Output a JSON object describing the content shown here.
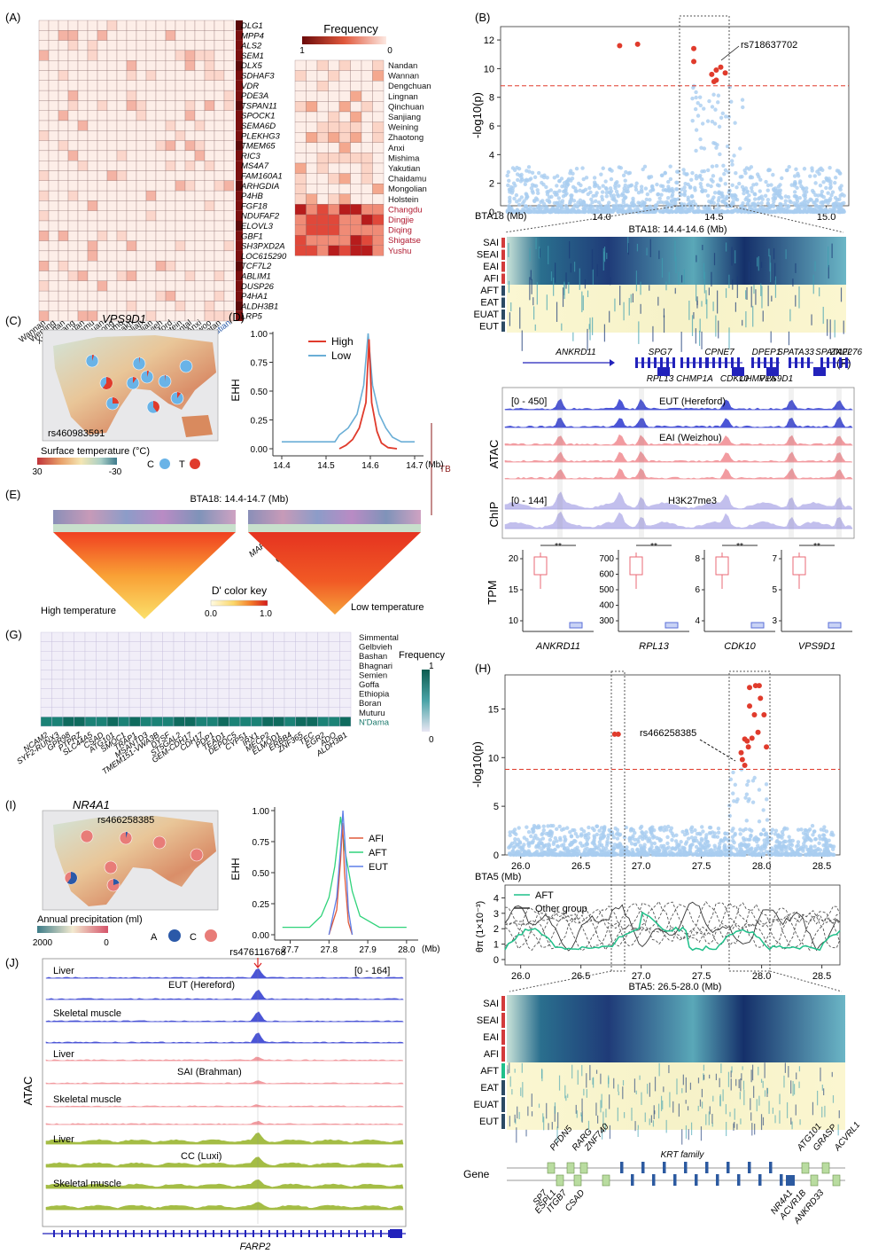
{
  "panels": {
    "A": {
      "label": "(A)",
      "genes": [
        "DLG1",
        "MPP4",
        "ALS2",
        "SEM1",
        "DLX5",
        "SDHAF3",
        "VDR",
        "PDE3A",
        "TSPAN11",
        "SPOCK1",
        "SEMA6D",
        "PLEKHG3",
        "TMEM65",
        "RIC3",
        "MS4A7",
        "FAM160A1",
        "ARHGDIA",
        "P4HB",
        "FGF18",
        "NDUFAF2",
        "ELOVL3",
        "GBF1",
        "SH3PXD2A",
        "LOC615290",
        "TCF7L2",
        "ABLIM1",
        "DUSP26",
        "P4HA1",
        "ALDH3B1",
        "LRP5"
      ],
      "populations": [
        "Wannan",
        "Wenling",
        "Xuanhan",
        "Nanyang",
        "Qinchuan",
        "Chaidamu",
        "Dengchuan",
        "Dianzhong",
        "Chaidamu",
        "Kazakh",
        "(Inner) Mongolian",
        "Eastern Mongolian",
        "Gelbvieh",
        "Hereford",
        "Holstein",
        "Simmental",
        "Anxi",
        "Hanwoo",
        "Tibetan",
        "Yakutian"
      ],
      "freq_title": "Frequency",
      "freq_min": "0",
      "freq_max": "1",
      "loci": [
        "MAP3K7-BACH2",
        "PDE10A",
        "SHFDUOX1",
        "GALNT14-CAPN13",
        "PTK6",
        "CHST1",
        "TRAPPC11-STOX2",
        "NTM"
      ],
      "rows": [
        "Nandan",
        "Wannan",
        "Dengchuan",
        "Lingnan",
        "Qinchuan",
        "Sanjiang",
        "Weining",
        "Zhaotong",
        "Anxi",
        "Mishima",
        "Yakutian",
        "Chaidamu",
        "Mongolian",
        "Holstein",
        "Changdu",
        "Dingjie",
        "Diqing",
        "Shigatse",
        "Yushu"
      ],
      "tb_label": "TB"
    },
    "B": {
      "label": "(B)",
      "ylabel": "-log10(p)",
      "xlabel": "BTA18 (Mb)",
      "xticks": [
        "14.0",
        "14.5",
        "15.0"
      ],
      "yticks": [
        "0",
        "2",
        "4",
        "6",
        "8",
        "10",
        "12"
      ],
      "snp": "rs718637702",
      "region": "BTA18: 14.4-14.6 (Mb)",
      "groups": [
        "SAI",
        "SEAI",
        "EAI",
        "AFI",
        "AFT",
        "EAT",
        "EUAT",
        "EUT"
      ]
    },
    "C": {
      "label": "(C)",
      "gene": "VPS9D1",
      "snp": "rs460983591",
      "legend_title": "Surface temperature (°C)",
      "scale_min": "30",
      "scale_max": "-30",
      "allele_c": "C",
      "allele_t": "T"
    },
    "D": {
      "label": "(D)",
      "ylabel": "EHH",
      "xticks": [
        "14.4",
        "14.5",
        "14.6",
        "14.7"
      ],
      "xunit": "(Mb)",
      "yticks": [
        "0.00",
        "0.25",
        "0.50",
        "0.75",
        "1.00"
      ],
      "legend": [
        "High",
        "Low"
      ]
    },
    "E": {
      "label": "(E)",
      "title": "BTA18: 14.4-14.7 (Mb)",
      "left_label": "High temperature",
      "right_label": "Low temperature",
      "key_title": "D' color key",
      "key_min": "0.0",
      "key_max": "1.0"
    },
    "F": {
      "label": "(F)",
      "genes_top": [
        "ANKRD11",
        "SPG7",
        "CPNE7",
        "DPEP1",
        "SPATA33",
        "SPATA2L",
        "ZNF276"
      ],
      "genes_bottom": [
        "RPL13",
        "CHMP1A",
        "CDK10",
        "VPS9D1"
      ],
      "atac_range": "[0 - 450]",
      "atac_group1": "EUT (Hereford)",
      "atac_group2": "EAI (Weizhou)",
      "chip_range": "[0 - 144]",
      "chip_mark": "H3K27me3",
      "atac_label": "ATAC",
      "chip_label": "ChIP",
      "tpm_label": "TPM",
      "sig": "**",
      "box_genes": [
        "ANKRD11",
        "RPL13",
        "CDK10",
        "VPS9D1"
      ],
      "box_yticks": [
        [
          "10",
          "15",
          "20"
        ],
        [
          "300",
          "400",
          "500",
          "600",
          "700"
        ],
        [
          "4",
          "6",
          "8"
        ],
        [
          "3",
          "5",
          "7"
        ]
      ]
    },
    "G": {
      "label": "(G)",
      "rows": [
        "Simmental",
        "Gelbvieh",
        "Bashan",
        "Bhagnari",
        "Semien",
        "Goffa",
        "Ethiopia",
        "Boran",
        "Muturu",
        "N'Dama"
      ],
      "genes": [
        "NCAM2",
        "SYF2-RUNX3",
        "GPR98",
        "PTPRZ",
        "SLC44A5",
        "CSAD",
        "ATG101",
        "SMOC1",
        "TRAP1",
        "MSANTD3",
        "TMEM151-VWA3B",
        "DYSF",
        "ST5GAL2",
        "GEM-CDH17",
        "CDH17",
        "PDP1",
        "TEAD1",
        "DEPDC5",
        "CYP51",
        "IRX1",
        "MECP2",
        "ELMOD1",
        "ERBB4",
        "ZNF365",
        "TEC",
        "EGR2",
        "ADO",
        "ALDH3B1"
      ],
      "freq_title": "Frequency",
      "freq_max": "1",
      "freq_min": "0"
    },
    "H": {
      "label": "(H)",
      "ylabel": "-log10(p)",
      "xticks": [
        "26.0",
        "26.5",
        "27.0",
        "27.5",
        "28.0",
        "28.5"
      ],
      "yticks": [
        "0",
        "5",
        "10",
        "15"
      ],
      "snp": "rs466258385",
      "chrom": "BTA5 (Mb)",
      "pi_ylabel": "θπ (1×10⁻³)",
      "pi_yticks": [
        "0",
        "1",
        "2",
        "3",
        "4"
      ],
      "pi_legend": [
        "AFT",
        "Other group"
      ],
      "region": "BTA5: 26.5-28.0 (Mb)",
      "groups": [
        "SAI",
        "SEAI",
        "EAI",
        "AFI",
        "AFT",
        "EAT",
        "EUAT",
        "EUT"
      ],
      "gene_label": "Gene",
      "krt_label": "KRT family",
      "genes_up": [
        "PFDN5",
        "RARG",
        "ZNF740",
        "ATG101",
        "GRASP",
        "ACVRL1"
      ],
      "genes_down": [
        "SP7",
        "ESPL1",
        "ITGB7",
        "CSAD",
        "NR4A1",
        "ACVR1B",
        "ANKRD33"
      ]
    },
    "I": {
      "label": "(I)",
      "gene": "NR4A1",
      "snp": "rs466258385",
      "legend_title": "Annual precipitation (ml)",
      "scale_min": "2000",
      "scale_max": "0",
      "allele_a": "A",
      "allele_c": "C",
      "ylabel": "EHH",
      "yticks": [
        "0.00",
        "0.25",
        "0.50",
        "0.75",
        "1.00"
      ],
      "xticks": [
        "27.7",
        "27.8",
        "27.9",
        "28.0"
      ],
      "xunit": "(Mb)",
      "legend": [
        "AFI",
        "AFT",
        "EUT"
      ]
    },
    "J": {
      "label": "(J)",
      "snp": "rs476116768",
      "range": "[0 - 164]",
      "atac_label": "ATAC",
      "tracks": [
        "Liver",
        "Skeletal muscle",
        "Liver",
        "Skeletal muscle",
        "Liver",
        "Skeletal muscle"
      ],
      "groups": [
        "EUT (Hereford)",
        "SAI (Brahman)",
        "CC (Luxi)"
      ],
      "gene": "FARP2"
    }
  },
  "colors": {
    "red": "#e03b2c",
    "light_blue": "#a9cdf0",
    "blue_track": "#4b55d6",
    "pink_track": "#f29ba0",
    "lav_track": "#a9a4e6",
    "green_track": "#a4bd45",
    "teal": "#1c7a6d"
  }
}
